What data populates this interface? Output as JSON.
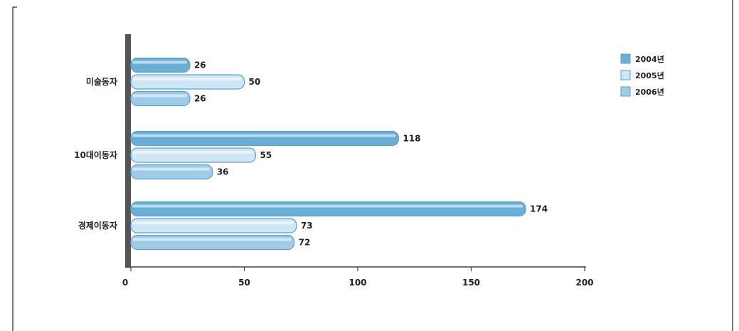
{
  "chart_data": {
    "type": "bar",
    "orientation": "horizontal",
    "categories": [
      "미술동자",
      "10대이동자",
      "경제이동자"
    ],
    "series": [
      {
        "name": "2004년",
        "values": [
          26,
          118,
          174
        ],
        "color": "#6aaed6"
      },
      {
        "name": "2005년",
        "values": [
          50,
          55,
          73
        ],
        "color": "#cfe6f4"
      },
      {
        "name": "2006년",
        "values": [
          26,
          36,
          72
        ],
        "color": "#9fcbe6"
      }
    ],
    "value_labels": [
      [
        "26",
        "118",
        "174"
      ],
      [
        "50",
        "55",
        "73"
      ],
      [
        "26",
        "36",
        "72"
      ]
    ],
    "xlim": [
      0,
      200
    ],
    "xticks": [
      "0",
      "50",
      "100",
      "150",
      "200"
    ],
    "title": "",
    "xlabel": "",
    "ylabel": "",
    "grid": false,
    "legend_position": "top-right"
  }
}
